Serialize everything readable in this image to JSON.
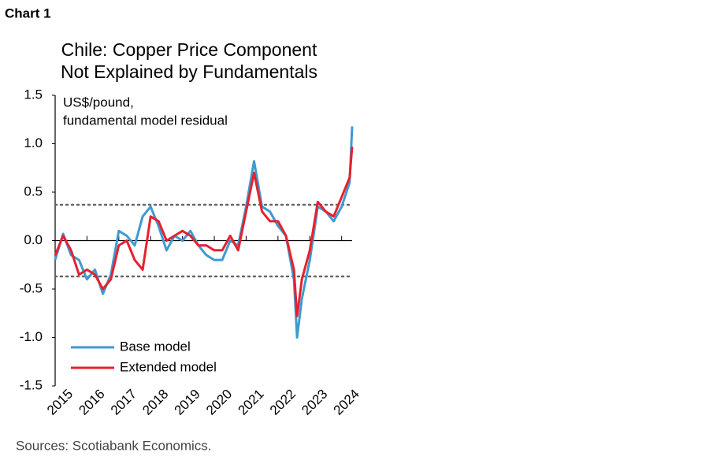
{
  "chart_data": {
    "type": "line",
    "label": "Chart 1",
    "title": [
      "Chile: Copper Price Component",
      "Not Explained by Fundamentals"
    ],
    "ylabel": [
      "US$/pound,",
      "fundamental model residual"
    ],
    "source": "Sources: Scotiabank Economics.",
    "x": [
      2015.0,
      2015.25,
      2015.5,
      2015.75,
      2016.0,
      2016.25,
      2016.5,
      2016.75,
      2017.0,
      2017.25,
      2017.5,
      2017.75,
      2018.0,
      2018.25,
      2018.5,
      2018.75,
      2019.0,
      2019.25,
      2019.5,
      2019.75,
      2020.0,
      2020.25,
      2020.5,
      2020.75,
      2021.0,
      2021.25,
      2021.5,
      2021.75,
      2022.0,
      2022.25,
      2022.5,
      2022.6,
      2022.75,
      2023.0,
      2023.25,
      2023.5,
      2023.75,
      2024.0,
      2024.25,
      2024.33
    ],
    "series": [
      {
        "name": "Base model",
        "color": "#3d9bd1",
        "values": [
          -0.2,
          0.07,
          -0.15,
          -0.2,
          -0.4,
          -0.3,
          -0.55,
          -0.35,
          0.1,
          0.05,
          -0.05,
          0.25,
          0.35,
          0.15,
          -0.1,
          0.05,
          0.0,
          0.1,
          -0.05,
          -0.15,
          -0.2,
          -0.2,
          0.0,
          -0.05,
          0.35,
          0.82,
          0.35,
          0.3,
          0.15,
          0.05,
          -0.4,
          -1.0,
          -0.6,
          -0.2,
          0.35,
          0.3,
          0.2,
          0.35,
          0.6,
          1.18
        ]
      },
      {
        "name": "Extended model",
        "color": "#e8202e",
        "values": [
          -0.15,
          0.05,
          -0.1,
          -0.35,
          -0.3,
          -0.35,
          -0.5,
          -0.4,
          -0.05,
          0.0,
          -0.2,
          -0.3,
          0.25,
          0.2,
          0.0,
          0.05,
          0.1,
          0.05,
          -0.05,
          -0.05,
          -0.1,
          -0.1,
          0.05,
          -0.1,
          0.3,
          0.7,
          0.3,
          0.2,
          0.2,
          0.05,
          -0.3,
          -0.78,
          -0.4,
          -0.1,
          0.4,
          0.3,
          0.25,
          0.45,
          0.65,
          0.97
        ]
      }
    ],
    "hlines": [
      0.37,
      -0.37
    ],
    "xlim": [
      2015,
      2024.33
    ],
    "xticks": [
      2015,
      2016,
      2017,
      2018,
      2019,
      2020,
      2021,
      2022,
      2023,
      2024
    ],
    "ylim": [
      -1.5,
      1.5
    ],
    "yticks": [
      {
        "value": 1.5,
        "label": "1.5"
      },
      {
        "value": 1.0,
        "label": "1.0"
      },
      {
        "value": 0.5,
        "label": "0.5"
      },
      {
        "value": 0.0,
        "label": "0.0"
      },
      {
        "value": -0.5,
        "label": "-0.5"
      },
      {
        "value": -1.0,
        "label": "-1.0"
      },
      {
        "value": -1.5,
        "label": "-1.5"
      }
    ],
    "legend": "lower left"
  }
}
